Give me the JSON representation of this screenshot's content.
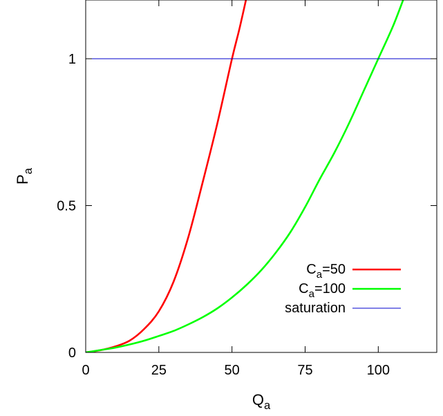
{
  "chart_data": {
    "type": "line",
    "title": "",
    "xlabel": {
      "main": "Q",
      "sub": "a"
    },
    "ylabel": {
      "main": "P",
      "sub": "a"
    },
    "xlim": [
      0,
      120
    ],
    "ylim": [
      0,
      1.2
    ],
    "x_ticks": [
      {
        "value": 0,
        "label": "0"
      },
      {
        "value": 25,
        "label": "25"
      },
      {
        "value": 50,
        "label": "50"
      },
      {
        "value": 75,
        "label": "75"
      },
      {
        "value": 100,
        "label": "100"
      }
    ],
    "y_ticks": [
      {
        "value": 0,
        "label": "0"
      },
      {
        "value": 0.5,
        "label": "0.5"
      },
      {
        "value": 1,
        "label": "1"
      }
    ],
    "grid": false,
    "legend_position": "bottom-right",
    "series": [
      {
        "name": {
          "main": "C",
          "sub": "a",
          "suffix": "=50"
        },
        "color": "#ff0000",
        "points": [
          [
            0,
            0
          ],
          [
            5,
            0.0075
          ],
          [
            10,
            0.02
          ],
          [
            15,
            0.04
          ],
          [
            20,
            0.08
          ],
          [
            25,
            0.14
          ],
          [
            30,
            0.24
          ],
          [
            35,
            0.39
          ],
          [
            40,
            0.58
          ],
          [
            45,
            0.78
          ],
          [
            50,
            1.0
          ],
          [
            52.5,
            1.1
          ],
          [
            55,
            1.21
          ]
        ]
      },
      {
        "name": {
          "main": "C",
          "sub": "a",
          "suffix": "=100"
        },
        "color": "#00ff00",
        "points": [
          [
            0,
            0
          ],
          [
            5,
            0.008
          ],
          [
            10,
            0.016
          ],
          [
            15,
            0.027
          ],
          [
            20,
            0.04
          ],
          [
            25,
            0.056
          ],
          [
            30,
            0.073
          ],
          [
            35,
            0.095
          ],
          [
            40,
            0.12
          ],
          [
            45,
            0.15
          ],
          [
            50,
            0.187
          ],
          [
            55,
            0.23
          ],
          [
            60,
            0.28
          ],
          [
            65,
            0.34
          ],
          [
            70,
            0.41
          ],
          [
            75,
            0.495
          ],
          [
            80,
            0.59
          ],
          [
            85,
            0.68
          ],
          [
            90,
            0.78
          ],
          [
            95,
            0.89
          ],
          [
            100,
            1.0
          ],
          [
            105,
            1.11
          ],
          [
            108.5,
            1.2
          ]
        ]
      },
      {
        "name": {
          "main": "saturation",
          "sub": "",
          "suffix": ""
        },
        "color": "#0000cc",
        "points": [
          [
            0,
            1
          ],
          [
            120,
            1
          ]
        ]
      }
    ]
  }
}
